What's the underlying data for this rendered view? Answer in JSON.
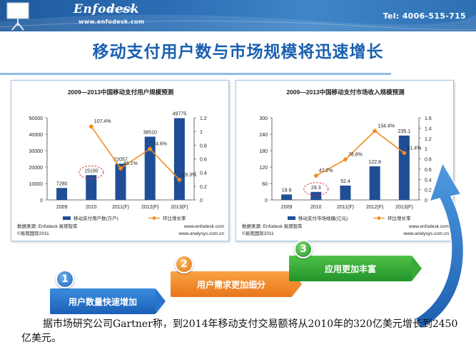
{
  "header": {
    "brand": "Enfodesk",
    "brand_cn": "易观智库",
    "url": "www.enfodesk.com",
    "tel": "Tel: 4006-515-715"
  },
  "title": "移动支付用户数与市场规模将迅速增长",
  "colors": {
    "primary": "#1a5fb0",
    "bar": "#1f4e96",
    "line": "#f08c1e",
    "highlight": "#e03030"
  },
  "chart_data": [
    {
      "type": "bar",
      "title": "2009—2013中国移动支付用户规模预测",
      "categories": [
        "2009",
        "2010",
        "2011(F)",
        "2012(F)",
        "2013(F)"
      ],
      "series": [
        {
          "name": "移动支付用户数(万户)",
          "type": "bar",
          "axis": "left",
          "values": [
            7280,
            15100,
            22057,
            38510,
            49775
          ]
        },
        {
          "name": "环比增长率",
          "type": "line",
          "axis": "right",
          "values": [
            null,
            1.074,
            0.461,
            0.746,
            0.293
          ],
          "labels": [
            "",
            "107.4%",
            "46.1%",
            "74.6%",
            "29.3%"
          ]
        }
      ],
      "bar_labels": [
        "7280",
        "15100",
        "22057",
        "38510",
        "49775"
      ],
      "ylim": [
        0,
        50000
      ],
      "y_ticks": [
        "0",
        "10000",
        "20000",
        "30000",
        "40000",
        "50000"
      ],
      "y2lim": [
        0,
        1.2
      ],
      "y2_ticks": [
        "0",
        "0.2",
        "0.4",
        "0.6",
        "0.8",
        "1",
        "1.2"
      ],
      "highlight_category": "2010",
      "source": "数据来源: Enfodesk 易观智库",
      "copyright": "©易观国际2011",
      "site1": "www.enfodesk.com",
      "site2": "www.analysys.com.cn"
    },
    {
      "type": "bar",
      "title": "2009—2013中国移动支付市场收入规模预测",
      "categories": [
        "2009",
        "2010",
        "2011(F)",
        "2012(F)",
        "2013(F)"
      ],
      "series": [
        {
          "name": "移动支付市场规模(亿元)",
          "type": "bar",
          "axis": "left",
          "values": [
            19.9,
            29.3,
            52.4,
            122.8,
            235.1
          ]
        },
        {
          "name": "环比增长率",
          "type": "line",
          "axis": "right",
          "values": [
            null,
            0.472,
            0.788,
            1.344,
            0.914
          ],
          "labels": [
            "",
            "47.2%",
            "78.8%",
            "134.4%",
            "91.4%"
          ]
        }
      ],
      "bar_labels": [
        "19.9",
        "29.3",
        "52.4",
        "122.8",
        "235.1"
      ],
      "ylim": [
        0,
        300
      ],
      "y_ticks": [
        "0",
        "60",
        "120",
        "180",
        "240",
        "300"
      ],
      "y2lim": [
        0,
        1.6
      ],
      "y2_ticks": [
        "0",
        "0.2",
        "0.4",
        "0.6",
        "0.8",
        "1",
        "1.2",
        "1.4",
        "1.6"
      ],
      "highlight_category": "2010",
      "source": "数据来源: Enfodesk 易观智库",
      "copyright": "©易观国际2011",
      "site1": "www.enfodesk.com",
      "site2": "www.analysys.com.cn"
    }
  ],
  "steps": [
    {
      "number": "1",
      "label": "用户数量快速增加"
    },
    {
      "number": "2",
      "label": "用户需求更加细分"
    },
    {
      "number": "3",
      "label": "应用更加丰富"
    }
  ],
  "footnote": "据市场研究公司Gartner称，到2014年移动支付交易额将从2010年的320亿美元增长到2450亿美元。"
}
